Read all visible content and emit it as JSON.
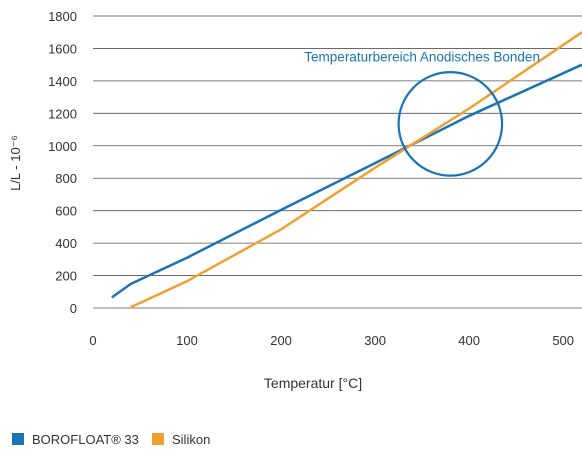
{
  "chart_data": {
    "type": "line",
    "title": "",
    "xlabel": "Temperatur [°C]",
    "ylabel": "L/L - 10⁻⁶",
    "xlim": [
      0,
      520
    ],
    "ylim": [
      0,
      1800
    ],
    "x_ticks": [
      0,
      100,
      200,
      300,
      400,
      500
    ],
    "y_ticks": [
      0,
      200,
      400,
      600,
      800,
      1000,
      1200,
      1400,
      1600,
      1800
    ],
    "grid": "horizontal",
    "legend_position": "bottom-left",
    "series": [
      {
        "name": "BOROFLOAT® 33",
        "color": "#1a73b5",
        "points": [
          [
            20,
            65
          ],
          [
            40,
            148
          ],
          [
            100,
            310
          ],
          [
            200,
            605
          ],
          [
            300,
            893
          ],
          [
            400,
            1185
          ],
          [
            520,
            1500
          ]
        ]
      },
      {
        "name": "Silikon",
        "color": "#f0a030",
        "points": [
          [
            40,
            5
          ],
          [
            100,
            165
          ],
          [
            200,
            485
          ],
          [
            300,
            865
          ],
          [
            400,
            1230
          ],
          [
            520,
            1700
          ]
        ]
      }
    ],
    "annotations": [
      {
        "text": "Temperaturbereich Anodisches Bonden",
        "color": "#1a73b5",
        "anchor": [
          350,
          1520
        ]
      }
    ],
    "highlight_circle": {
      "center": [
        380,
        1135
      ],
      "radius_x_units": 55,
      "color": "#1a73b5"
    }
  }
}
